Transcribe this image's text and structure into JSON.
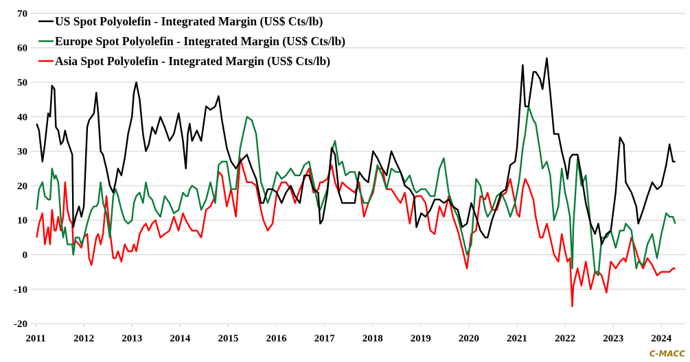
{
  "chart_data": {
    "type": "line",
    "title": "",
    "xlabel": "",
    "ylabel": "",
    "xlim": [
      2011,
      2024.35
    ],
    "ylim": [
      -20,
      70
    ],
    "y_ticks": [
      "-20",
      "-10",
      "0",
      "10",
      "20",
      "30",
      "40",
      "50",
      "60",
      "70"
    ],
    "x_ticks": [
      "2011",
      "2012",
      "2013",
      "2014",
      "2015",
      "2016",
      "2017",
      "2018",
      "2019",
      "2020",
      "2021",
      "2022",
      "2023",
      "2024"
    ],
    "grid": "horizontal",
    "legend_position": "top-left",
    "source_label": "C-MACC",
    "source_color": "#9c7a12",
    "x": [
      2011.02,
      2011.07,
      2011.14,
      2011.19,
      2011.26,
      2011.3,
      2011.34,
      2011.39,
      2011.42,
      2011.47,
      2011.52,
      2011.57,
      2011.61,
      2011.66,
      2011.71,
      2011.76,
      2011.78,
      2011.83,
      2011.9,
      2011.95,
      2012.0,
      2012.07,
      2012.11,
      2012.16,
      2012.21,
      2012.26,
      2012.3,
      2012.35,
      2012.4,
      2012.47,
      2012.54,
      2012.61,
      2012.66,
      2012.71,
      2012.78,
      2012.85,
      2012.92,
      2013.0,
      2013.04,
      2013.09,
      2013.16,
      2013.23,
      2013.29,
      2013.35,
      2013.42,
      2013.49,
      2013.59,
      2013.68,
      2013.78,
      2013.87,
      2013.97,
      2014.06,
      2014.12,
      2014.16,
      2014.2,
      2014.25,
      2014.35,
      2014.44,
      2014.54,
      2014.63,
      2014.73,
      2014.8,
      2014.87,
      2014.97,
      2015.06,
      2015.16,
      2015.25,
      2015.39,
      2015.49,
      2015.58,
      2015.68,
      2015.73,
      2015.82,
      2015.92,
      2016.01,
      2016.11,
      2016.2,
      2016.3,
      2016.39,
      2016.49,
      2016.58,
      2016.68,
      2016.77,
      2016.87,
      2016.91,
      2016.96,
      2017.06,
      2017.15,
      2017.22,
      2017.3,
      2017.37,
      2017.44,
      2017.53,
      2017.63,
      2017.72,
      2017.82,
      2017.91,
      2018.01,
      2018.1,
      2018.2,
      2018.29,
      2018.39,
      2018.48,
      2018.58,
      2018.67,
      2018.77,
      2018.86,
      2018.91,
      2019.01,
      2019.1,
      2019.2,
      2019.29,
      2019.39,
      2019.48,
      2019.58,
      2019.67,
      2019.77,
      2019.86,
      2019.96,
      2020.05,
      2020.15,
      2020.24,
      2020.34,
      2020.39,
      2020.48,
      2020.58,
      2020.67,
      2020.77,
      2020.86,
      2020.96,
      2021.0,
      2021.05,
      2021.12,
      2021.17,
      2021.24,
      2021.34,
      2021.39,
      2021.48,
      2021.53,
      2021.62,
      2021.69,
      2021.77,
      2021.86,
      2021.93,
      2022.0,
      2022.05,
      2022.1,
      2022.15,
      2022.17,
      2022.26,
      2022.34,
      2022.43,
      2022.53,
      2022.62,
      2022.69,
      2022.76,
      2022.86,
      2022.95,
      2023.05,
      2023.14,
      2023.22,
      2023.26,
      2023.38,
      2023.48,
      2023.52,
      2023.62,
      2023.71,
      2023.81,
      2023.91,
      2024.0,
      2024.1,
      2024.17,
      2024.24,
      2024.29
    ],
    "series": [
      {
        "name": "US Spot Polyolefin - Integrated Margin (US$ Cts/lb)",
        "color": "#000000",
        "values": [
          38,
          36,
          27,
          32,
          41,
          40,
          49,
          48,
          37,
          36,
          32,
          33,
          36,
          33,
          31,
          29,
          8,
          11,
          14,
          11,
          14,
          37,
          39,
          40,
          41,
          47,
          41,
          30,
          29,
          25,
          20,
          18,
          21,
          25,
          23,
          28,
          35,
          40,
          47,
          50,
          45,
          35,
          30,
          32,
          37,
          35,
          40,
          37,
          33,
          35,
          41,
          33,
          25,
          35,
          38,
          33,
          36,
          33,
          43,
          42,
          43,
          46,
          39,
          31,
          27,
          25,
          27,
          29,
          25,
          22,
          15,
          15,
          19,
          19,
          18,
          15,
          18,
          20,
          17,
          15,
          23,
          23,
          19,
          18,
          9,
          10,
          18,
          31,
          29,
          18,
          15,
          15,
          15,
          15,
          24,
          22,
          21,
          30,
          28,
          25,
          23,
          30,
          27,
          24,
          20,
          19,
          17,
          8,
          12,
          11,
          13,
          16,
          16,
          15,
          16,
          14,
          13,
          8,
          9,
          15,
          11,
          7,
          5,
          5,
          10,
          14,
          18,
          19,
          26,
          27,
          31,
          41,
          55,
          43,
          43,
          53,
          53,
          51,
          48,
          57,
          47,
          35,
          35,
          30,
          26,
          22,
          28,
          29,
          29,
          29,
          23,
          15,
          9,
          6,
          9,
          3,
          6,
          7,
          18,
          34,
          32,
          21,
          18,
          14,
          9,
          13,
          17,
          21,
          19,
          20,
          26,
          32,
          27,
          27
        ]
      },
      {
        "name": "Europe Spot Polyolefin - Integrated Margin (US$ Cts/lb)",
        "color": "#0b7d3a",
        "values": [
          13,
          19,
          21,
          17,
          16,
          16,
          25,
          22,
          23,
          21,
          11,
          5,
          8,
          3,
          3,
          3,
          0,
          5,
          5,
          3,
          5,
          9,
          11,
          13,
          14,
          14,
          15,
          21,
          15,
          12,
          5,
          17,
          19,
          17,
          13,
          10,
          9,
          10,
          15,
          17,
          18,
          15,
          21,
          17,
          16,
          13,
          11,
          17,
          15,
          12,
          13,
          18,
          17,
          17,
          19,
          20,
          19,
          13,
          16,
          21,
          15,
          26,
          27,
          27,
          19,
          19,
          31,
          40,
          39,
          35,
          21,
          19,
          15,
          19,
          24,
          22,
          23,
          25,
          23,
          23,
          26,
          27,
          21,
          14,
          13,
          15,
          19,
          30,
          33,
          26,
          27,
          23,
          24,
          24,
          19,
          15,
          15,
          19,
          26,
          23,
          19,
          25,
          24,
          24,
          21,
          23,
          19,
          18,
          19,
          19,
          17,
          17,
          25,
          28,
          18,
          14,
          11,
          6,
          0,
          3,
          22,
          20,
          13,
          11,
          13,
          17,
          18,
          15,
          11,
          15,
          18,
          22,
          31,
          35,
          43,
          39,
          38,
          30,
          25,
          27,
          23,
          10,
          14,
          25,
          18,
          15,
          11,
          -4,
          8,
          28,
          20,
          23,
          8,
          -5,
          -6,
          5,
          5,
          7,
          2,
          7,
          7,
          9,
          7,
          -4,
          -2,
          -3,
          3,
          6,
          -1,
          6,
          12,
          11,
          11,
          9
        ]
      },
      {
        "name": "Asia Spot Polyolefin - Integrated Margin (US$ Cts/lb)",
        "color": "#ff0000",
        "values": [
          5,
          9,
          12,
          3,
          8,
          3,
          13,
          7,
          7,
          11,
          7,
          11,
          21,
          13,
          10,
          9,
          3,
          4,
          3,
          2,
          5,
          6,
          -1,
          -3,
          1,
          5,
          6,
          3,
          6,
          17,
          7,
          -1,
          -1,
          1,
          -2,
          3,
          1,
          1,
          3,
          1,
          6,
          8,
          9,
          7,
          9,
          10,
          5,
          6,
          7,
          11,
          7,
          12,
          10,
          9,
          8,
          7,
          7,
          5,
          13,
          14,
          17,
          24,
          23,
          14,
          19,
          11,
          28,
          21,
          21,
          20,
          13,
          10,
          7,
          9,
          18,
          21,
          21,
          19,
          15,
          19,
          22,
          25,
          18,
          19,
          21,
          21,
          22,
          26,
          21,
          18,
          21,
          20,
          19,
          18,
          21,
          11,
          15,
          18,
          25,
          25,
          19,
          19,
          17,
          15,
          18,
          9,
          16,
          17,
          17,
          15,
          7,
          6,
          14,
          11,
          17,
          11,
          7,
          2,
          -4,
          6,
          7,
          17,
          16,
          18,
          13,
          13,
          17,
          18,
          22,
          15,
          12,
          11,
          19,
          22,
          20,
          16,
          11,
          5,
          5,
          9,
          5,
          0,
          -2,
          6,
          1,
          -2,
          -1,
          -15,
          -9,
          -4,
          -9,
          -2,
          -10,
          -5,
          -5,
          -6,
          -11,
          -2,
          -4,
          -2,
          -1,
          -2,
          5,
          1,
          -1,
          -4,
          -1,
          -3,
          -6,
          -5,
          -5,
          -5,
          -4,
          -4
        ]
      }
    ]
  }
}
